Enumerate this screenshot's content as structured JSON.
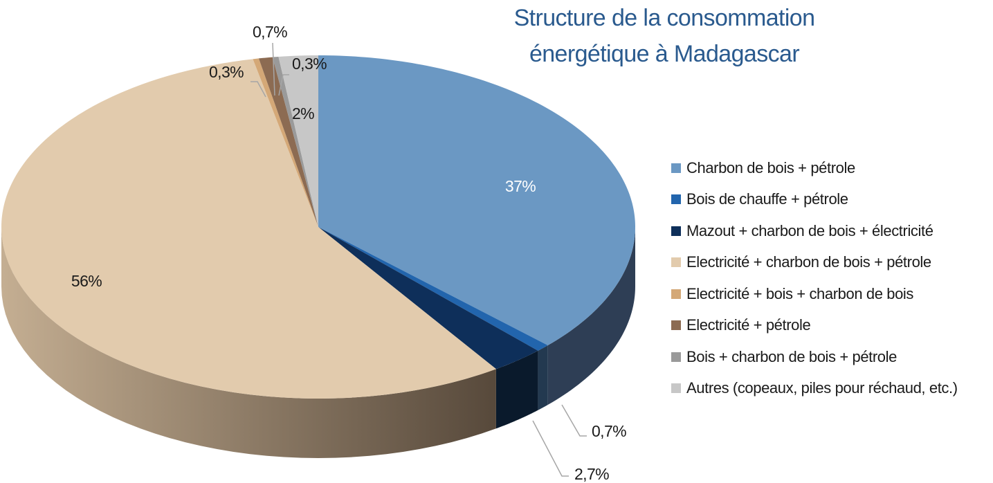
{
  "chart_data": {
    "type": "pie",
    "title": [
      "Structure de la consommation",
      "énergétique à Madagascar"
    ],
    "categories": [
      "Charbon de bois + pétrole",
      "Bois de chauffe + pétrole",
      "Mazout + charbon de bois + électricité",
      "Electricité + charbon de bois + pétrole",
      "Electricité + bois + charbon de bois",
      "Electricité + pétrole",
      "Bois + charbon de bois + pétrole",
      "Autres (copeaux, piles pour réchaud, etc.)"
    ],
    "values": [
      37,
      0.7,
      2.7,
      56,
      0.3,
      0.7,
      0.3,
      2
    ],
    "data_labels": [
      "37%",
      "0,7%",
      "2,7%",
      "56%",
      "0,3%",
      "0,7%",
      "0,3%",
      "2%"
    ],
    "colors": [
      "#6b98c3",
      "#2265ad",
      "#0e2f5a",
      "#e2cbad",
      "#d4a877",
      "#8c6b52",
      "#9a9a9a",
      "#c7c7c7"
    ],
    "side_colors": [
      "#2e3e55",
      "#233950",
      "#0a1a2c",
      "#6f5e4c",
      "#7a6250",
      "#584638",
      "#6a6a6a",
      "#8a8a8a"
    ],
    "legend_position": "right"
  }
}
